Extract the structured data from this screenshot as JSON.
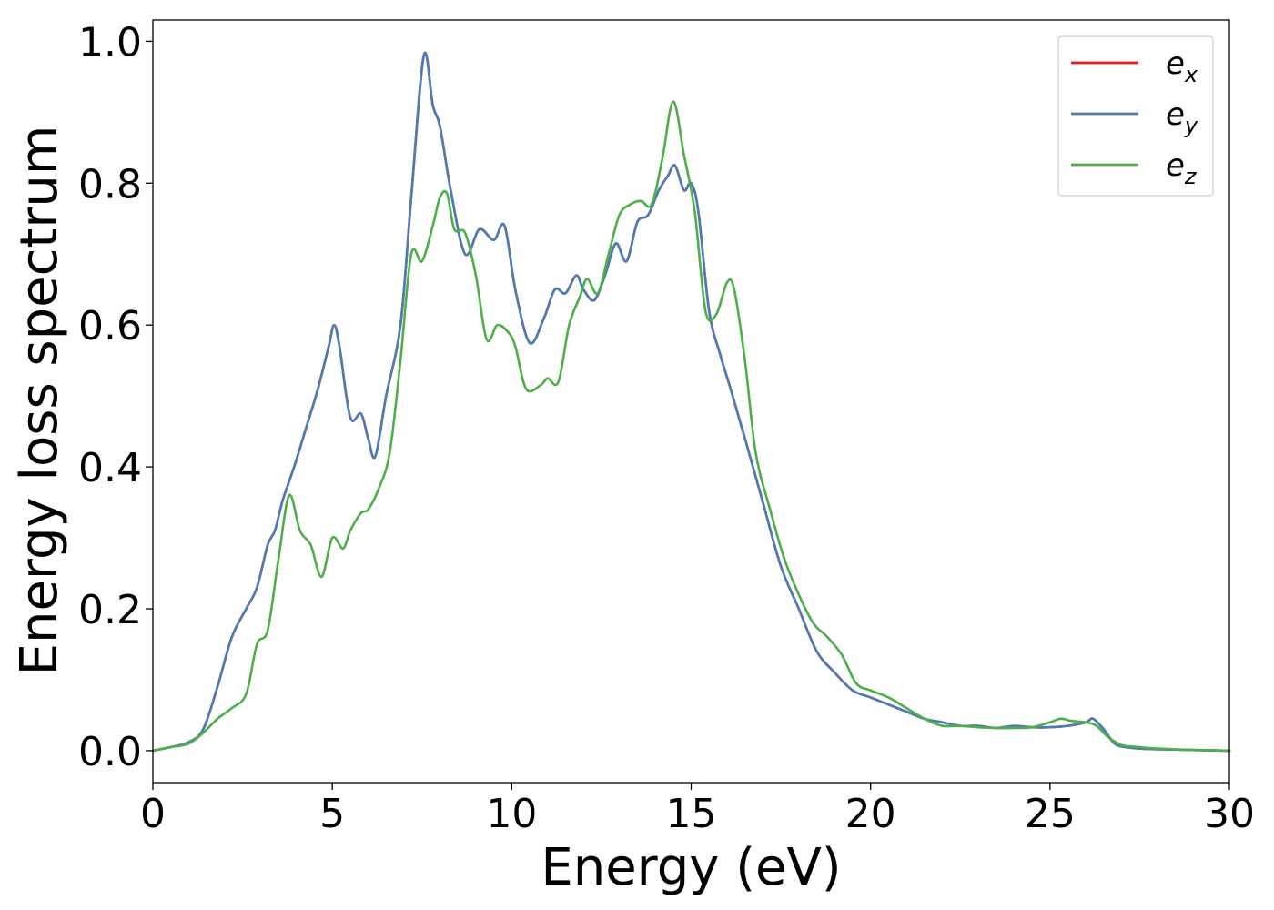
{
  "chart_data": {
    "type": "line",
    "title": "",
    "xlabel": "Energy (eV)",
    "ylabel": "Energy loss spectrum",
    "xlim": [
      0,
      30
    ],
    "ylim": [
      -0.045,
      1.03
    ],
    "xticks": [
      0,
      5,
      10,
      15,
      20,
      25,
      30
    ],
    "yticks": [
      0.0,
      0.2,
      0.4,
      0.6,
      0.8,
      1.0
    ],
    "xtick_labels": [
      "0",
      "5",
      "10",
      "15",
      "20",
      "25",
      "30"
    ],
    "ytick_labels": [
      "0.0",
      "0.2",
      "0.4",
      "0.6",
      "0.8",
      "1.0"
    ],
    "grid": false,
    "legend_position": "top-right",
    "series": [
      {
        "name": "e_x",
        "legend_base": "e",
        "legend_sub": "x",
        "color": "#e41a1c",
        "x": [
          0,
          0.5,
          1.0,
          1.4,
          1.8,
          2.2,
          2.6,
          2.9,
          3.2,
          3.4,
          3.6,
          3.8,
          4.0,
          4.3,
          4.6,
          4.9,
          5.05,
          5.2,
          5.5,
          5.8,
          6.0,
          6.2,
          6.5,
          6.9,
          7.2,
          7.55,
          7.8,
          8.0,
          8.3,
          8.7,
          9.1,
          9.5,
          9.8,
          10.1,
          10.5,
          10.9,
          11.2,
          11.5,
          11.8,
          12.0,
          12.3,
          12.6,
          12.9,
          13.2,
          13.5,
          13.8,
          14.1,
          14.35,
          14.55,
          14.8,
          15.0,
          15.2,
          15.5,
          15.8,
          16.1,
          16.5,
          17.0,
          17.5,
          18.0,
          18.5,
          19.0,
          19.5,
          20.0,
          20.5,
          21.0,
          21.5,
          22.0,
          22.5,
          23.0,
          23.5,
          24.0,
          24.5,
          25.0,
          25.5,
          26.0,
          26.2,
          26.5,
          26.8,
          27.1,
          27.5,
          28.0,
          29.0,
          30.0
        ],
        "y": [
          0.0,
          0.005,
          0.012,
          0.03,
          0.09,
          0.16,
          0.2,
          0.23,
          0.29,
          0.31,
          0.35,
          0.38,
          0.41,
          0.46,
          0.51,
          0.57,
          0.6,
          0.57,
          0.47,
          0.475,
          0.44,
          0.415,
          0.5,
          0.6,
          0.78,
          0.98,
          0.91,
          0.88,
          0.79,
          0.7,
          0.735,
          0.72,
          0.74,
          0.65,
          0.575,
          0.61,
          0.65,
          0.645,
          0.67,
          0.65,
          0.635,
          0.67,
          0.715,
          0.69,
          0.745,
          0.755,
          0.79,
          0.81,
          0.825,
          0.79,
          0.8,
          0.76,
          0.62,
          0.56,
          0.51,
          0.44,
          0.35,
          0.26,
          0.2,
          0.14,
          0.11,
          0.085,
          0.075,
          0.065,
          0.055,
          0.045,
          0.04,
          0.035,
          0.035,
          0.032,
          0.035,
          0.033,
          0.033,
          0.035,
          0.04,
          0.045,
          0.03,
          0.01,
          0.005,
          0.003,
          0.002,
          0.001,
          0.0
        ]
      },
      {
        "name": "e_y",
        "legend_base": "e",
        "legend_sub": "y",
        "color": "#4a7db8",
        "x": [
          0,
          0.5,
          1.0,
          1.4,
          1.8,
          2.2,
          2.6,
          2.9,
          3.2,
          3.4,
          3.6,
          3.8,
          4.0,
          4.3,
          4.6,
          4.9,
          5.05,
          5.2,
          5.5,
          5.8,
          6.0,
          6.2,
          6.5,
          6.9,
          7.2,
          7.55,
          7.8,
          8.0,
          8.3,
          8.7,
          9.1,
          9.5,
          9.8,
          10.1,
          10.5,
          10.9,
          11.2,
          11.5,
          11.8,
          12.0,
          12.3,
          12.6,
          12.9,
          13.2,
          13.5,
          13.8,
          14.1,
          14.35,
          14.55,
          14.8,
          15.0,
          15.2,
          15.5,
          15.8,
          16.1,
          16.5,
          17.0,
          17.5,
          18.0,
          18.5,
          19.0,
          19.5,
          20.0,
          20.5,
          21.0,
          21.5,
          22.0,
          22.5,
          23.0,
          23.5,
          24.0,
          24.5,
          25.0,
          25.5,
          26.0,
          26.2,
          26.5,
          26.8,
          27.1,
          27.5,
          28.0,
          29.0,
          30.0
        ],
        "y": [
          0.0,
          0.005,
          0.012,
          0.03,
          0.09,
          0.16,
          0.2,
          0.23,
          0.29,
          0.31,
          0.35,
          0.38,
          0.41,
          0.46,
          0.51,
          0.57,
          0.6,
          0.57,
          0.47,
          0.475,
          0.44,
          0.415,
          0.5,
          0.6,
          0.78,
          0.98,
          0.91,
          0.88,
          0.79,
          0.7,
          0.735,
          0.72,
          0.74,
          0.65,
          0.575,
          0.61,
          0.65,
          0.645,
          0.67,
          0.65,
          0.635,
          0.67,
          0.715,
          0.69,
          0.745,
          0.755,
          0.79,
          0.81,
          0.825,
          0.79,
          0.8,
          0.76,
          0.62,
          0.56,
          0.51,
          0.44,
          0.35,
          0.26,
          0.2,
          0.14,
          0.11,
          0.085,
          0.075,
          0.065,
          0.055,
          0.045,
          0.04,
          0.035,
          0.035,
          0.032,
          0.035,
          0.033,
          0.033,
          0.035,
          0.04,
          0.045,
          0.03,
          0.01,
          0.005,
          0.003,
          0.002,
          0.001,
          0.0
        ]
      },
      {
        "name": "e_z",
        "legend_base": "e",
        "legend_sub": "z",
        "color": "#4daf4a",
        "x": [
          0,
          0.5,
          1.0,
          1.4,
          1.8,
          2.2,
          2.6,
          2.9,
          3.2,
          3.5,
          3.8,
          4.1,
          4.4,
          4.7,
          5.0,
          5.3,
          5.5,
          5.8,
          6.0,
          6.3,
          6.6,
          6.9,
          7.2,
          7.5,
          7.8,
          8.0,
          8.2,
          8.4,
          8.7,
          9.0,
          9.3,
          9.6,
          9.9,
          10.1,
          10.4,
          10.8,
          11.0,
          11.3,
          11.6,
          11.9,
          12.1,
          12.4,
          12.7,
          13.0,
          13.3,
          13.6,
          13.9,
          14.2,
          14.5,
          14.8,
          15.1,
          15.4,
          15.7,
          16.0,
          16.2,
          16.5,
          16.8,
          17.2,
          17.6,
          18.0,
          18.4,
          18.8,
          19.2,
          19.6,
          20.0,
          20.5,
          21.0,
          21.5,
          22.0,
          22.5,
          23.0,
          23.5,
          24.0,
          24.5,
          25.0,
          25.3,
          25.6,
          26.0,
          26.3,
          26.6,
          27.0,
          27.5,
          28.0,
          29.0,
          30.0
        ],
        "y": [
          0.0,
          0.005,
          0.01,
          0.025,
          0.045,
          0.06,
          0.08,
          0.15,
          0.17,
          0.27,
          0.36,
          0.31,
          0.29,
          0.245,
          0.3,
          0.285,
          0.31,
          0.335,
          0.34,
          0.37,
          0.42,
          0.55,
          0.7,
          0.69,
          0.74,
          0.78,
          0.785,
          0.735,
          0.73,
          0.67,
          0.58,
          0.6,
          0.59,
          0.57,
          0.51,
          0.515,
          0.525,
          0.52,
          0.6,
          0.64,
          0.665,
          0.645,
          0.7,
          0.755,
          0.77,
          0.775,
          0.77,
          0.835,
          0.915,
          0.84,
          0.76,
          0.62,
          0.615,
          0.66,
          0.65,
          0.55,
          0.42,
          0.34,
          0.27,
          0.22,
          0.18,
          0.16,
          0.135,
          0.095,
          0.085,
          0.075,
          0.06,
          0.045,
          0.035,
          0.035,
          0.033,
          0.032,
          0.032,
          0.033,
          0.04,
          0.045,
          0.042,
          0.04,
          0.035,
          0.02,
          0.008,
          0.005,
          0.003,
          0.001,
          0.0
        ]
      }
    ]
  }
}
